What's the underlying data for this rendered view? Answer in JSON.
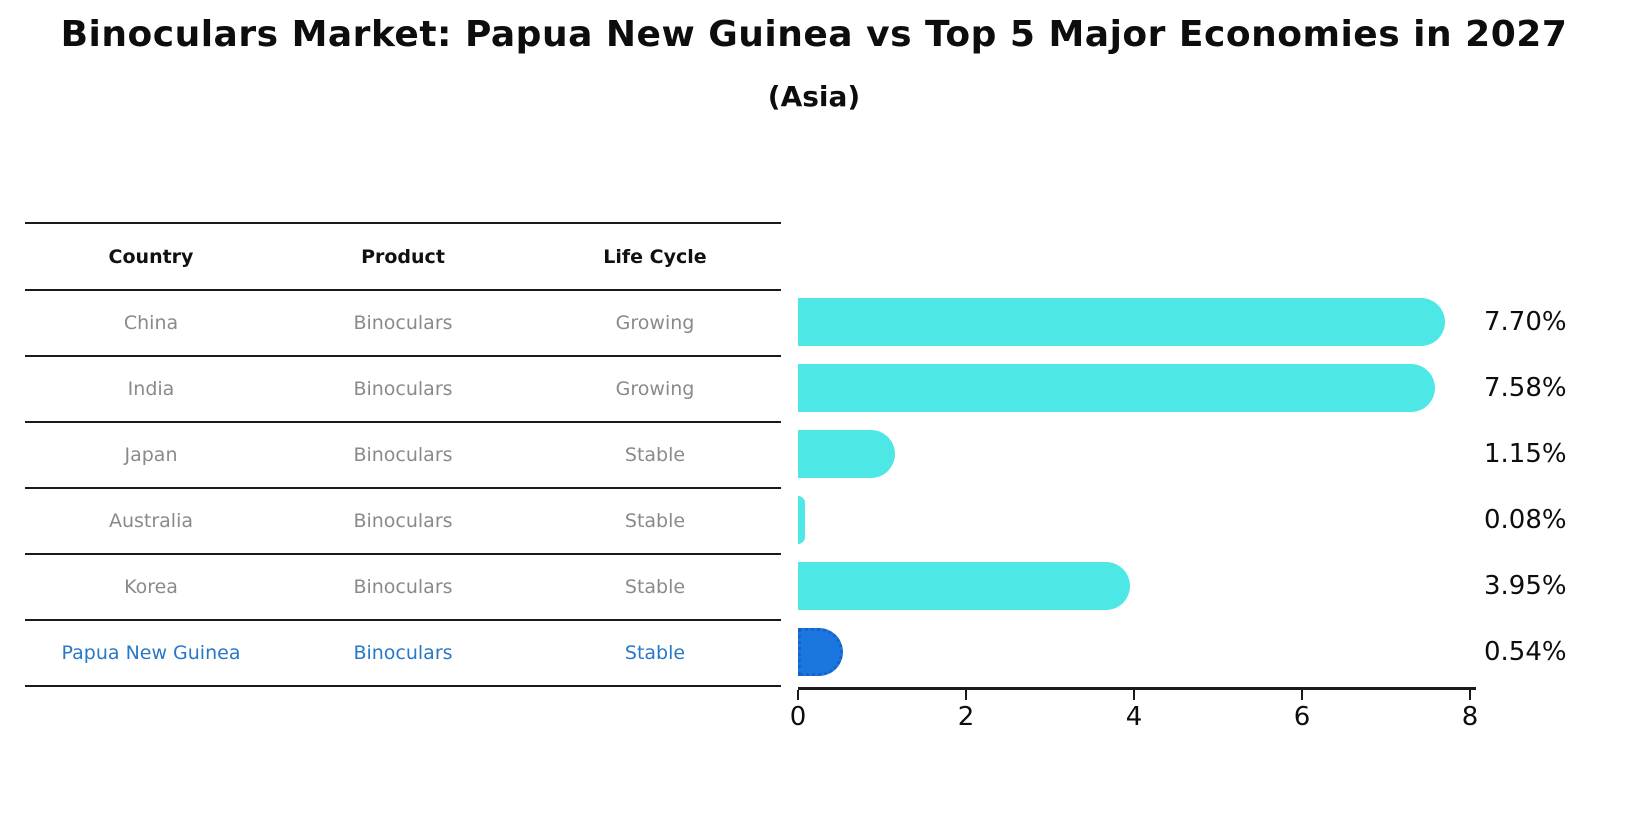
{
  "page": {
    "title": "Binoculars Market: Papua New Guinea vs Top 5 Major Economies in 2027",
    "subtitle": "(Asia)"
  },
  "table": {
    "headers": [
      "Country",
      "Product",
      "Life Cycle"
    ],
    "rows": [
      {
        "country": "China",
        "product": "Binoculars",
        "life_cycle": "Growing",
        "highlight": false
      },
      {
        "country": "India",
        "product": "Binoculars",
        "life_cycle": "Growing",
        "highlight": false
      },
      {
        "country": "Japan",
        "product": "Binoculars",
        "life_cycle": "Stable",
        "highlight": false
      },
      {
        "country": "Australia",
        "product": "Binoculars",
        "life_cycle": "Stable",
        "highlight": false
      },
      {
        "country": "Korea",
        "product": "Binoculars",
        "life_cycle": "Stable",
        "highlight": false
      },
      {
        "country": "Papua New Guinea",
        "product": "Binoculars",
        "life_cycle": "Stable",
        "highlight": true
      }
    ]
  },
  "chart_data": {
    "type": "bar",
    "orientation": "horizontal",
    "title": "Binoculars Market: Papua New Guinea vs Top 5 Major Economies in 2027 (Asia)",
    "categories": [
      "China",
      "India",
      "Japan",
      "Australia",
      "Korea",
      "Papua New Guinea"
    ],
    "values": [
      7.7,
      7.58,
      1.15,
      0.08,
      3.95,
      0.54
    ],
    "labels": [
      "7.70%",
      "7.58%",
      "1.15%",
      "0.08%",
      "3.95%",
      "0.54%"
    ],
    "xlabel": "",
    "ylabel": "",
    "xlim": [
      0,
      8
    ],
    "x_ticks": [
      "0",
      "2",
      "4",
      "6",
      "8"
    ],
    "grid": false,
    "legend": false,
    "bar_color": "#4de8e6",
    "highlight_color": "#1b76e0",
    "highlight_border_color": "#1565c8",
    "highlight_index": 5
  },
  "colors": {
    "header_text": "#111111",
    "row_text": "#8a8a8a",
    "highlight_text": "#2878c8",
    "axis": "#1a1a1a"
  }
}
